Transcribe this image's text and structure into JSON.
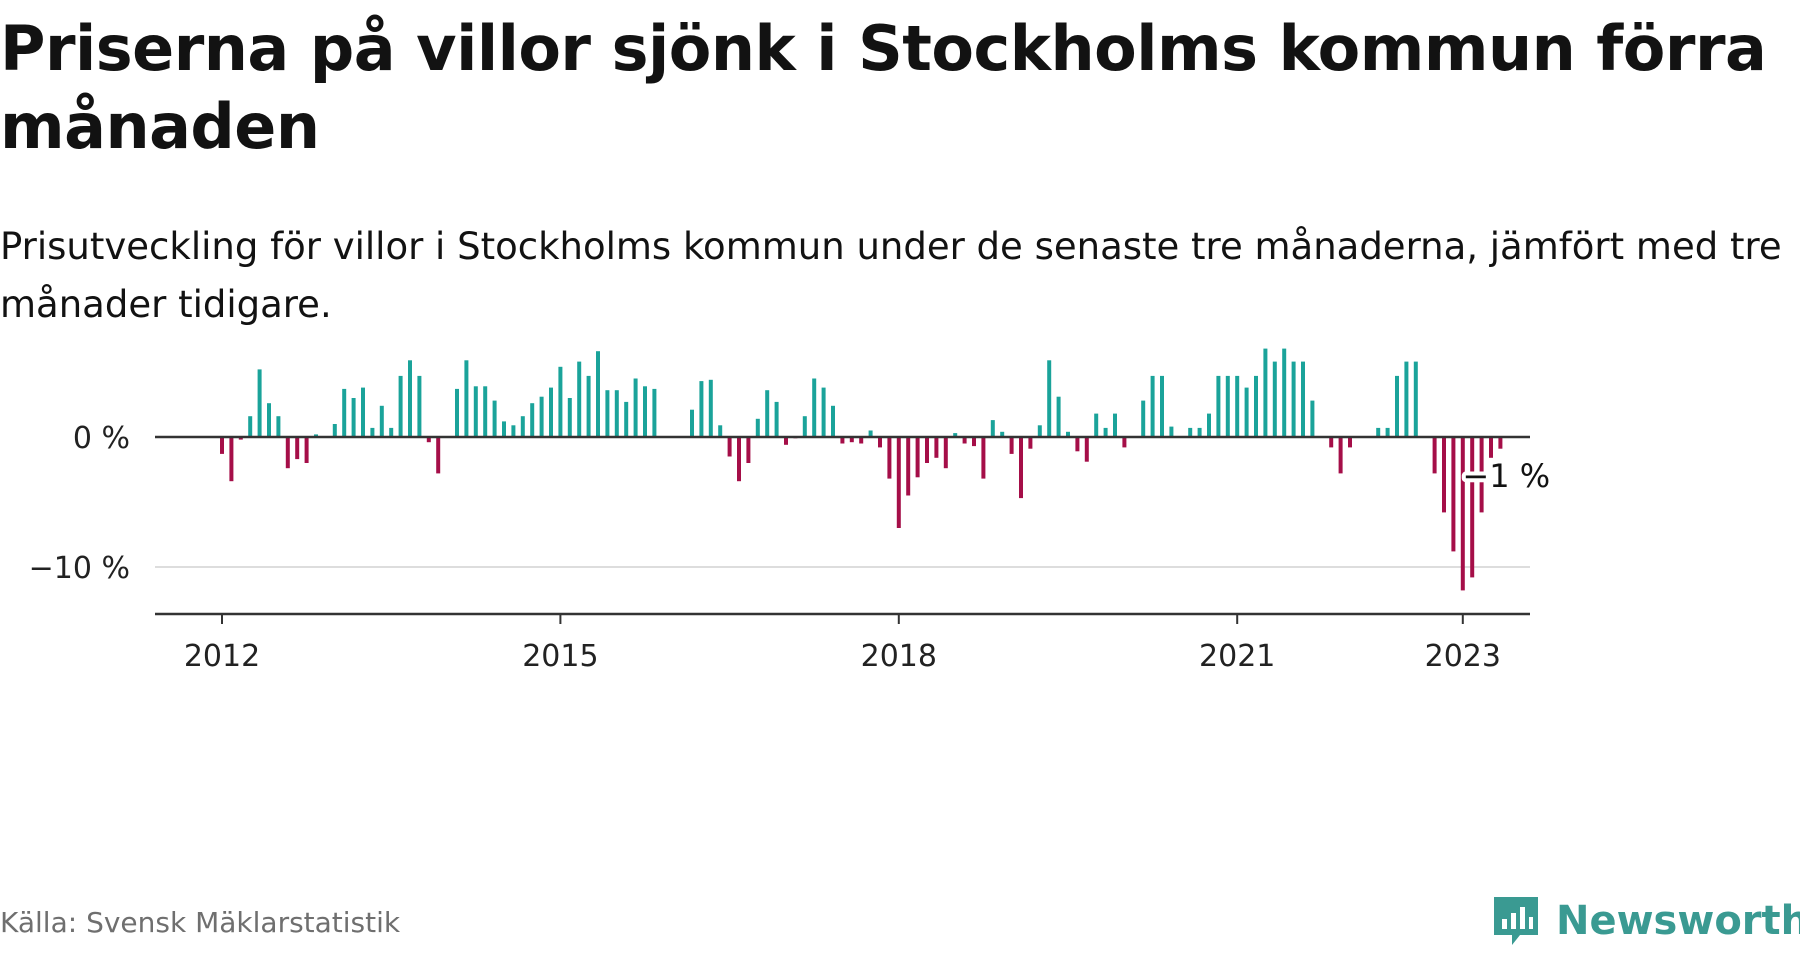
{
  "title": "Priserna på villor sjönk i Stockholms kommun förra månaden",
  "subtitle": "Prisutveckling för villor i Stockholms kommun under de senaste tre månaderna, jämfört med tre månader tidigare.",
  "source": "Källa: Svensk Mäklarstatistik",
  "brand": {
    "name": "Newsworthy",
    "logo_icon": "newsworthy-chart-bubble-icon"
  },
  "colors": {
    "positive": "#1aa39a",
    "negative": "#a50e48",
    "baseline": "#333333",
    "grid": "#dddddd",
    "brand": "#3a9a92"
  },
  "chart_data": {
    "type": "bar",
    "x_axis": {
      "ticks": [
        "2012",
        "2015",
        "2018",
        "2021",
        "2023"
      ]
    },
    "y_axis": {
      "ticks": [
        0,
        -10
      ],
      "tick_labels": [
        "0 %",
        "−10 %"
      ],
      "ylim": [
        -13.5,
        7.5
      ],
      "grid": true
    },
    "annotation": {
      "label": "−1 %",
      "value": -0.9
    },
    "series": [
      {
        "values": [
          -1.3,
          -3.4,
          -0.2,
          1.6,
          5.2,
          2.6,
          1.6,
          -2.4,
          -1.7,
          -2.0,
          0.2,
          0.0,
          1.0,
          3.7,
          3.0,
          3.8,
          0.7,
          2.4,
          0.7,
          4.7,
          5.9,
          4.7,
          -0.4,
          -2.8,
          0.0,
          3.7,
          5.9,
          3.9,
          3.9,
          2.8,
          1.2,
          0.9,
          1.6,
          2.6,
          3.1,
          3.8,
          5.4,
          3.0,
          5.8,
          4.7,
          6.6,
          3.6,
          3.6,
          2.7,
          4.5,
          3.9,
          3.7,
          0.0,
          0.0,
          0.0,
          2.1,
          4.3,
          4.4,
          0.9,
          -1.5,
          -3.4,
          -2.0,
          1.4,
          3.6,
          2.7,
          -0.6,
          -0.1,
          1.6,
          4.5,
          3.8,
          2.4,
          -0.5,
          -0.4,
          -0.5,
          0.5,
          -0.8,
          -3.2,
          -7.0,
          -4.5,
          -3.1,
          -2.0,
          -1.6,
          -2.4,
          0.3,
          -0.5,
          -0.7,
          -3.2,
          1.3,
          0.4,
          -1.3,
          -4.7,
          -0.9,
          0.9,
          5.9,
          3.1,
          0.4,
          -1.1,
          -1.9,
          1.8,
          0.7,
          1.8,
          -0.8,
          0.0,
          2.8,
          4.7,
          4.7,
          0.8,
          0.0,
          0.7,
          0.7,
          1.8,
          4.7,
          4.7,
          4.7,
          3.8,
          4.7,
          6.8,
          5.8,
          6.8,
          5.8,
          5.8,
          2.8,
          0.0,
          -0.8,
          -2.8,
          -0.8,
          0.0,
          0.0,
          0.7,
          0.7,
          4.7,
          5.8,
          5.8,
          0.0,
          -2.8,
          -5.8,
          -8.8,
          -11.8,
          -10.8,
          -5.8,
          -1.6,
          -0.9
        ]
      }
    ]
  }
}
